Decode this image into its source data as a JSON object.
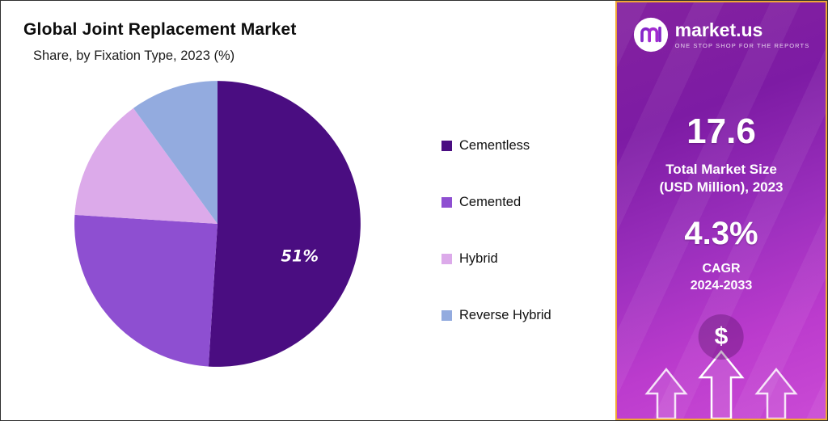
{
  "chart_data": {
    "type": "pie",
    "title": "Global Joint Replacement Market",
    "subtitle": "Share, by Fixation Type, 2023 (%)",
    "unit": "%",
    "legend_position": "right",
    "start_angle_deg": 0,
    "direction": "clockwise",
    "segments": [
      {
        "label": "Cementless",
        "value": 51,
        "color": "#4a0d81",
        "display_label": "51%"
      },
      {
        "label": "Cemented",
        "value": 25,
        "color": "#8e4fd1",
        "display_label": ""
      },
      {
        "label": "Hybrid",
        "value": 14,
        "color": "#dcaaea",
        "display_label": ""
      },
      {
        "label": "Reverse Hybrid",
        "value": 10,
        "color": "#93abdf",
        "display_label": ""
      }
    ]
  },
  "panel": {
    "brand": {
      "name": "market.us",
      "tagline": "ONE STOP SHOP FOR THE REPORTS"
    },
    "stats": [
      {
        "value": "17.6",
        "label_line1": "Total Market Size",
        "label_line2": "(USD Million), 2023"
      },
      {
        "value": "4.3%",
        "label_line1": "CAGR",
        "label_line2": "2024-2033"
      }
    ],
    "dollar_symbol": "$",
    "accent_border_color": "#f0a637"
  }
}
